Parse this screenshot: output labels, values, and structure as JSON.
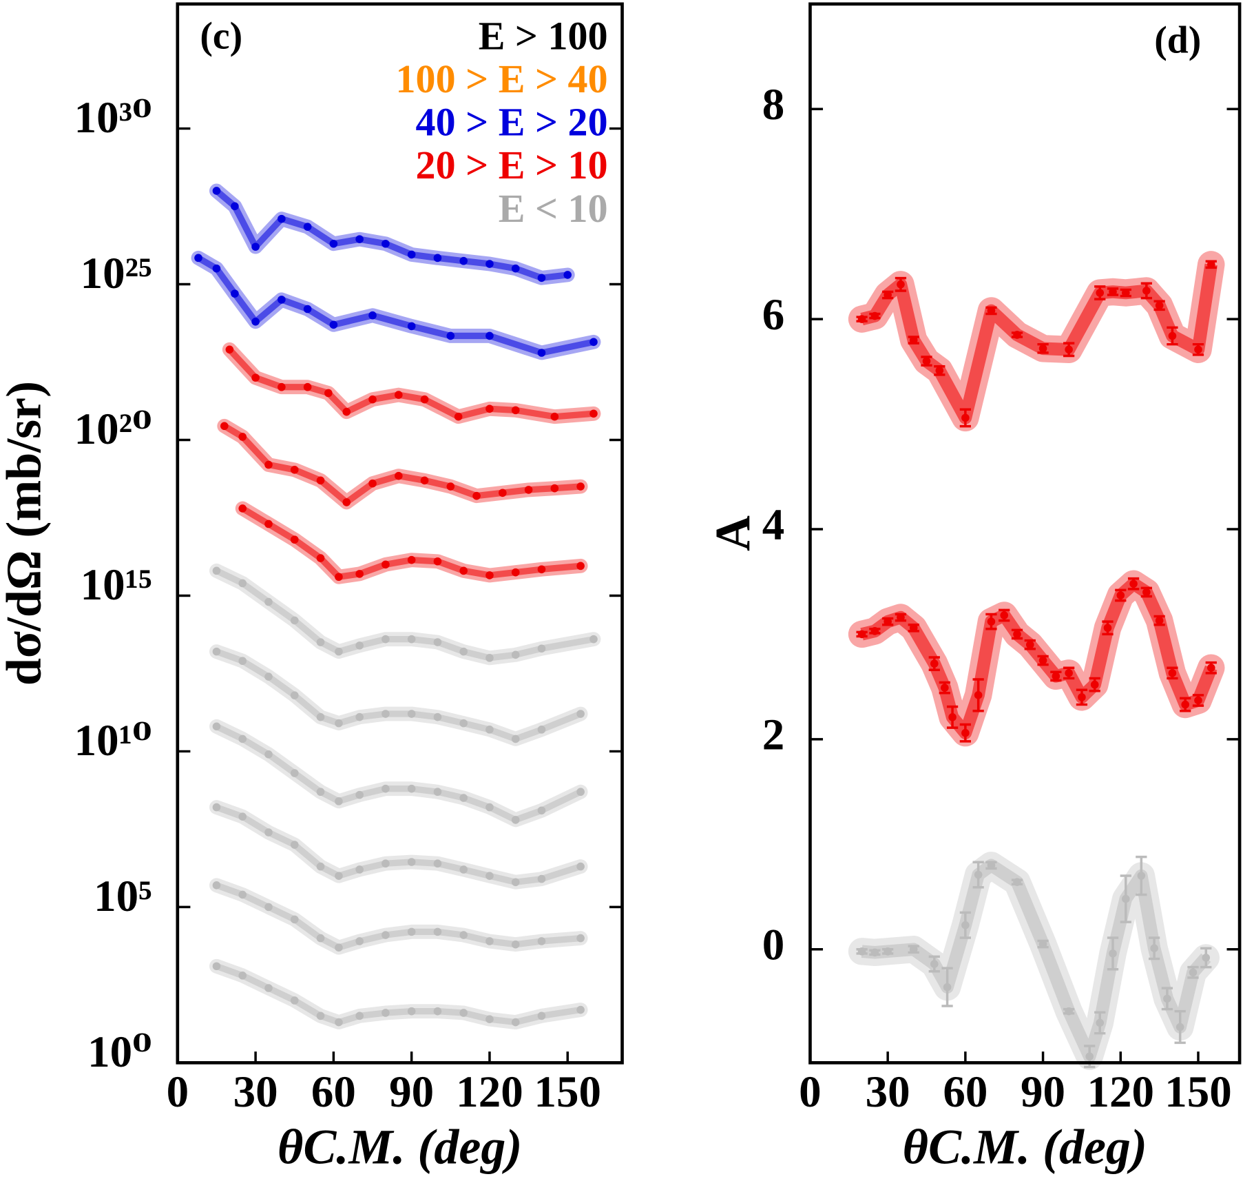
{
  "chart_data": [
    {
      "type": "line",
      "panel_label": "(c)",
      "y_label": "dσ/dΩ (mb/sr)",
      "x_label": "θC.M. (deg)",
      "log_y": true,
      "xlim": [
        0,
        171
      ],
      "ylim": [
        1,
        1e+34
      ],
      "xticks": [
        0,
        30,
        60,
        90,
        120,
        150
      ],
      "yticks": [
        {
          "value": 1,
          "label": "10⁰"
        },
        {
          "value": 100000.0,
          "label": "10⁵"
        },
        {
          "value": 10000000000.0,
          "label": "10¹⁰"
        },
        {
          "value": 1000000000000000.0,
          "label": "10¹⁵"
        },
        {
          "value": 1e+20,
          "label": "10²⁰"
        },
        {
          "value": 1e+25,
          "label": "10²⁵"
        },
        {
          "value": 1e+30,
          "label": "10³⁰"
        }
      ],
      "legend": {
        "position": "upper right",
        "entries": [
          {
            "label": "E > 100",
            "color": "#000000"
          },
          {
            "label": "100 > E > 40",
            "color": "#ff8c00"
          },
          {
            "label": "40 > E > 20",
            "color": "#0000dd"
          },
          {
            "label": "20 > E > 10",
            "color": "#ee0000"
          },
          {
            "label": "E < 10",
            "color": "#aaaaaa"
          }
        ]
      },
      "series": [
        {
          "color": "#bbbbbb",
          "x": [
            15,
            25,
            35,
            45,
            55,
            62,
            70,
            80,
            90,
            100,
            110,
            120,
            130,
            140,
            155
          ],
          "values": [
            1260.0,
            630.0,
            250.0,
            100.0,
            32,
            20,
            32,
            40,
            45,
            45,
            40,
            25,
            20,
            32,
            50
          ]
        },
        {
          "color": "#bbbbbb",
          "x": [
            15,
            25,
            35,
            45,
            55,
            62,
            70,
            80,
            90,
            100,
            110,
            120,
            130,
            140,
            155
          ],
          "values": [
            500000.0,
            250000.0,
            100000.0,
            40000.0,
            10000.0,
            5000.0,
            8000.0,
            12600.0,
            16000.0,
            16000.0,
            12600.0,
            8000.0,
            6300.0,
            8000.0,
            10000.0
          ]
        },
        {
          "color": "#bbbbbb",
          "x": [
            15,
            25,
            35,
            45,
            55,
            62,
            70,
            80,
            90,
            100,
            110,
            120,
            130,
            140,
            155
          ],
          "values": [
            160000000.0,
            80000000.0,
            25000000.0,
            10000000.0,
            2000000.0,
            1000000.0,
            1600000.0,
            2500000.0,
            2800000.0,
            2500000.0,
            1600000.0,
            1000000.0,
            630000.0,
            800000.0,
            2000000.0
          ]
        },
        {
          "color": "#bbbbbb",
          "x": [
            15,
            25,
            35,
            45,
            55,
            62,
            70,
            80,
            90,
            100,
            110,
            120,
            130,
            140,
            155
          ],
          "values": [
            63000000000.0,
            25000000000.0,
            8000000000.0,
            2000000000.0,
            500000000.0,
            250000000.0,
            400000000.0,
            630000000.0,
            630000000.0,
            500000000.0,
            320000000.0,
            160000000.0,
            63000000.0,
            126000000.0,
            500000000.0
          ]
        },
        {
          "color": "#bbbbbb",
          "x": [
            15,
            25,
            35,
            45,
            55,
            62,
            70,
            80,
            90,
            100,
            110,
            120,
            130,
            140,
            155
          ],
          "values": [
            16000000000000.0,
            8000000000000.0,
            2500000000000.0,
            630000000000.0,
            126000000000.0,
            80000000000.0,
            126000000000.0,
            160000000000.0,
            160000000000.0,
            126000000000.0,
            80000000000.0,
            50000000000.0,
            25000000000.0,
            50000000000.0,
            160000000000.0
          ]
        },
        {
          "color": "#bbbbbb",
          "x": [
            15,
            25,
            35,
            45,
            55,
            62,
            70,
            80,
            90,
            100,
            110,
            120,
            130,
            140,
            160
          ],
          "values": [
            6300000000000000.0,
            2500000000000000.0,
            630000000000000.0,
            160000000000000.0,
            32000000000000.0,
            16000000000000.0,
            25000000000000.0,
            40000000000000.0,
            40000000000000.0,
            32000000000000.0,
            16000000000000.0,
            10000000000000.0,
            12600000000000.0,
            20000000000000.0,
            40000000000000.0
          ]
        },
        {
          "color": "#ee0000",
          "x": [
            25,
            35,
            45,
            55,
            62,
            70,
            80,
            90,
            100,
            110,
            120,
            130,
            140,
            155
          ],
          "values": [
            6.3e+17,
            2e+17,
            6.3e+16,
            1.6e+16,
            4000000000000000.0,
            5000000000000000.0,
            1e+16,
            1.4e+16,
            1.26e+16,
            6300000000000000.0,
            4500000000000000.0,
            5600000000000000.0,
            7000000000000000.0,
            9000000000000000.0
          ]
        },
        {
          "color": "#ee0000",
          "x": [
            18,
            25,
            35,
            45,
            55,
            65,
            75,
            85,
            95,
            105,
            115,
            125,
            135,
            145,
            155
          ],
          "values": [
            2.8e+20,
            1.26e+20,
            1.6e+19,
            1.1e+19,
            5e+18,
            1e+18,
            4e+18,
            7e+18,
            5e+18,
            3.2e+18,
            1.6e+18,
            2e+18,
            2.5e+18,
            2.8e+18,
            3.2e+18
          ]
        },
        {
          "color": "#ee0000",
          "x": [
            20,
            30,
            40,
            50,
            58,
            65,
            75,
            85,
            95,
            108,
            120,
            130,
            145,
            160
          ],
          "values": [
            8e+22,
            1e+22,
            5e+21,
            5e+21,
            3.2e+21,
            8e+20,
            2e+21,
            2.8e+21,
            2e+21,
            5.6e+20,
            1e+21,
            9e+20,
            5.6e+20,
            7e+20
          ]
        },
        {
          "color": "#0000dd",
          "x": [
            8,
            15,
            22,
            30,
            40,
            50,
            60,
            75,
            90,
            105,
            120,
            140,
            160
          ],
          "values": [
            7e+25,
            3.2e+25,
            5e+24,
            6.3e+23,
            3.2e+24,
            1.6e+24,
            5e+23,
            1e+24,
            4.5e+23,
            2.2e+23,
            2.2e+23,
            6.3e+22,
            1.4e+23
          ]
        },
        {
          "color": "#0000dd",
          "x": [
            15,
            22,
            30,
            40,
            50,
            60,
            70,
            80,
            90,
            100,
            110,
            120,
            130,
            140,
            150
          ],
          "values": [
            1e+28,
            3.2e+27,
            1.6e+26,
            1.26e+27,
            7e+26,
            2e+26,
            2.8e+26,
            2e+26,
            9e+25,
            7e+25,
            5.6e+25,
            4.5e+25,
            3.2e+25,
            1.6e+25,
            2e+25
          ]
        }
      ]
    },
    {
      "type": "errorbar",
      "panel_label": "(d)",
      "y_label": "A",
      "x_label": "θC.M. (deg)",
      "xlim": [
        0,
        166
      ],
      "ylim": [
        -1.08,
        9.0
      ],
      "xticks": [
        0,
        30,
        60,
        90,
        120,
        150
      ],
      "yticks": [
        0,
        2,
        4,
        6,
        8
      ],
      "series": [
        {
          "color": "#ee0000",
          "x": [
            20,
            25,
            30,
            35,
            40,
            45,
            50,
            60,
            70,
            80,
            90,
            100,
            112,
            117,
            122,
            130,
            135,
            140,
            150,
            155
          ],
          "values": [
            6.0,
            6.03,
            6.23,
            6.33,
            5.8,
            5.6,
            5.51,
            5.06,
            6.08,
            5.85,
            5.72,
            5.71,
            6.25,
            6.26,
            6.25,
            6.27,
            6.13,
            5.84,
            5.71,
            6.52
          ],
          "errors": [
            0.02,
            0.02,
            0.03,
            0.06,
            0.03,
            0.04,
            0.04,
            0.08,
            0.03,
            0.02,
            0.04,
            0.06,
            0.06,
            0.03,
            0.03,
            0.07,
            0.04,
            0.08,
            0.05,
            0.03
          ]
        },
        {
          "color": "#ee0000",
          "x": [
            20,
            25,
            30,
            35,
            40,
            48,
            52,
            55,
            60,
            65,
            70,
            75,
            80,
            85,
            90,
            95,
            100,
            105,
            110,
            115,
            120,
            125,
            130,
            135,
            140,
            145,
            150,
            155
          ],
          "values": [
            3.0,
            3.03,
            3.12,
            3.16,
            3.06,
            2.72,
            2.49,
            2.21,
            2.06,
            2.42,
            3.12,
            3.18,
            3.0,
            2.9,
            2.75,
            2.6,
            2.63,
            2.4,
            2.52,
            3.06,
            3.37,
            3.48,
            3.4,
            3.13,
            2.63,
            2.33,
            2.37,
            2.68
          ],
          "errors": [
            0.02,
            0.02,
            0.03,
            0.03,
            0.03,
            0.06,
            0.05,
            0.1,
            0.08,
            0.15,
            0.07,
            0.05,
            0.04,
            0.04,
            0.04,
            0.04,
            0.05,
            0.07,
            0.06,
            0.06,
            0.05,
            0.05,
            0.04,
            0.04,
            0.05,
            0.06,
            0.05,
            0.05
          ]
        },
        {
          "color": "#bbbbbb",
          "x": [
            20,
            25,
            30,
            40,
            48,
            53,
            60,
            65,
            70,
            80,
            90,
            100,
            108,
            112,
            117,
            122,
            128,
            133,
            138,
            143,
            148,
            153
          ],
          "values": [
            -0.02,
            -0.03,
            -0.02,
            0.0,
            -0.14,
            -0.36,
            0.23,
            0.71,
            0.8,
            0.64,
            0.05,
            -0.59,
            -1.02,
            -0.7,
            -0.04,
            0.48,
            0.7,
            0.01,
            -0.47,
            -0.74,
            -0.22,
            -0.08
          ],
          "errors": [
            0.02,
            0.02,
            0.02,
            0.03,
            0.07,
            0.18,
            0.12,
            0.12,
            0.03,
            0.02,
            0.03,
            0.02,
            0.1,
            0.1,
            0.15,
            0.22,
            0.18,
            0.1,
            0.1,
            0.15,
            0.05,
            0.09
          ]
        }
      ]
    }
  ]
}
